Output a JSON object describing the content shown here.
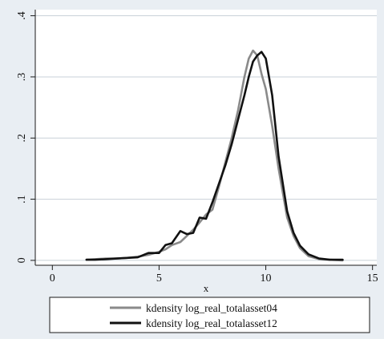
{
  "chart_data": {
    "type": "line",
    "title": "",
    "xlabel": "x",
    "ylabel": "",
    "xlim": [
      -0.8,
      15.2
    ],
    "ylim": [
      -0.008,
      0.41
    ],
    "xticks": [
      0,
      5,
      10,
      15
    ],
    "xtick_labels": [
      "0",
      "5",
      "10",
      "15"
    ],
    "yticks": [
      0,
      0.1,
      0.2,
      0.3,
      0.4
    ],
    "ytick_labels": [
      "0",
      ".1",
      ".2",
      ".3",
      ".4"
    ],
    "grid": "horizontal",
    "legend_position": "bottom",
    "colors": {
      "plot_background": "#ffffff",
      "outer_background": "#e9eef3",
      "grid": "#c8d0d8",
      "axis": "#1a1a1a"
    },
    "series": [
      {
        "name": "kdensity log_real_totalasset04",
        "color": "#8a8a8a",
        "x": [
          1.6,
          2.0,
          2.5,
          3.0,
          3.5,
          4.0,
          4.5,
          5.0,
          5.3,
          5.6,
          6.0,
          6.3,
          6.6,
          6.9,
          7.2,
          7.5,
          7.8,
          8.1,
          8.4,
          8.7,
          9.0,
          9.2,
          9.4,
          9.6,
          9.8,
          10.0,
          10.3,
          10.6,
          11.0,
          11.3,
          11.6,
          12.0,
          12.5,
          13.0,
          13.6
        ],
        "values": [
          0.001,
          0.002,
          0.003,
          0.003,
          0.004,
          0.006,
          0.009,
          0.014,
          0.018,
          0.025,
          0.03,
          0.04,
          0.05,
          0.062,
          0.075,
          0.083,
          0.12,
          0.16,
          0.2,
          0.245,
          0.3,
          0.33,
          0.343,
          0.335,
          0.305,
          0.28,
          0.22,
          0.15,
          0.07,
          0.04,
          0.02,
          0.007,
          0.002,
          0.001,
          0.0
        ]
      },
      {
        "name": "kdensity log_real_totalasset12",
        "color": "#111111",
        "x": [
          1.6,
          2.0,
          2.5,
          3.0,
          3.5,
          4.0,
          4.5,
          5.0,
          5.3,
          5.6,
          6.0,
          6.3,
          6.6,
          6.9,
          7.2,
          7.5,
          7.8,
          8.1,
          8.4,
          8.7,
          9.0,
          9.2,
          9.4,
          9.6,
          9.8,
          10.0,
          10.3,
          10.6,
          11.0,
          11.3,
          11.6,
          12.0,
          12.5,
          13.0,
          13.6
        ],
        "values": [
          0.001,
          0.001,
          0.002,
          0.003,
          0.004,
          0.005,
          0.012,
          0.012,
          0.025,
          0.028,
          0.048,
          0.043,
          0.045,
          0.07,
          0.068,
          0.095,
          0.125,
          0.155,
          0.19,
          0.23,
          0.27,
          0.3,
          0.325,
          0.335,
          0.341,
          0.33,
          0.27,
          0.17,
          0.08,
          0.045,
          0.024,
          0.01,
          0.003,
          0.001,
          0.001
        ]
      }
    ]
  }
}
